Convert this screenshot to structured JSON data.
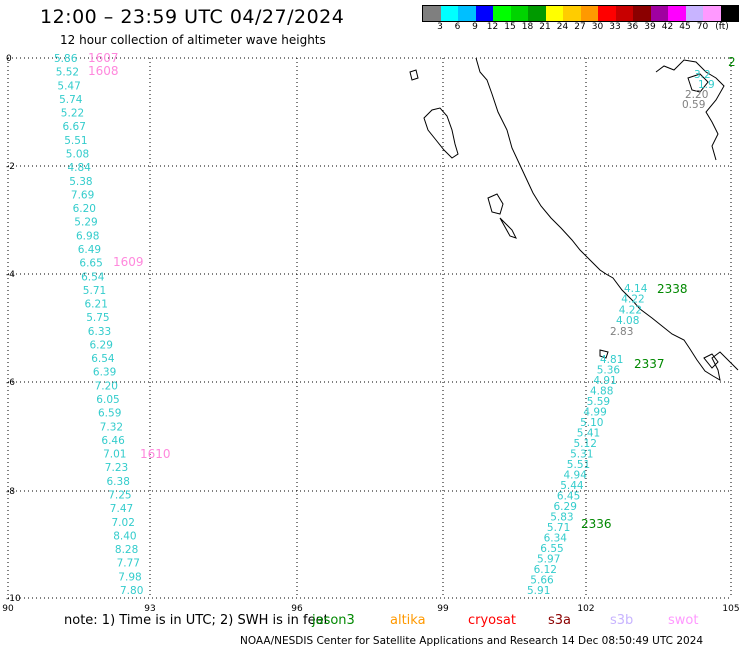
{
  "header": {
    "title": "12:00 – 23:59 UTC 04/27/2024",
    "subtitle": "12 hour collection of altimeter wave heights"
  },
  "scale": {
    "colors": [
      "#7f7f7f",
      "#00ffff",
      "#00bfff",
      "#0000ff",
      "#00ff00",
      "#00d400",
      "#009a00",
      "#ffff00",
      "#ffcc00",
      "#ff9900",
      "#ff0000",
      "#c80000",
      "#8b0000",
      "#a000a0",
      "#ff00ff",
      "#c8b4ff",
      "#ff99ff",
      "#000000"
    ],
    "ticks": [
      "3",
      "6",
      "9",
      "12",
      "15",
      "18",
      "21",
      "24",
      "27",
      "30",
      "33",
      "36",
      "39",
      "42",
      "45",
      "70"
    ],
    "unit": "(ft)"
  },
  "axes": {
    "lat_labels": [
      "0",
      "-2",
      "-4",
      "-6",
      "-8",
      "-10"
    ],
    "lon_labels": [
      "90",
      "93",
      "96",
      "99",
      "102",
      "105"
    ]
  },
  "tracks": [
    {
      "color": "#33cccc",
      "values": [
        "5.86",
        "5.52",
        "5.47",
        "5.74",
        "5.22",
        "6.67",
        "5.51",
        "5.08",
        "4.84",
        "5.38",
        "7.69",
        "6.20",
        "5.29",
        "6.98",
        "6.49",
        "6.65",
        "6.54",
        "5.71",
        "6.21",
        "5.75",
        "6.33",
        "6.29",
        "6.54",
        "6.39",
        "7.20",
        "6.05",
        "6.59",
        "7.32",
        "6.46",
        "7.01",
        "7.23",
        "6.38",
        "7.25",
        "7.47",
        "7.02",
        "8.40",
        "8.28",
        "7.77",
        "7.98",
        "7.80"
      ]
    },
    {
      "color": "#33cccc",
      "values": [
        "5.91",
        "5.66",
        "6.12",
        "5.97",
        "6.55",
        "6.34",
        "5.71",
        "5.83",
        "6.29",
        "6.45",
        "5.44",
        "4.94",
        "5.51",
        "5.31",
        "5.12",
        "5.41",
        "5.10",
        "4.99",
        "5.59",
        "4.88",
        "4.91",
        "5.36",
        "4.81"
      ]
    },
    {
      "color": "#33cccc",
      "values": [
        "4.14",
        "4.22",
        "4.22",
        "4.08"
      ]
    },
    {
      "color": "#808080",
      "values": [
        "2.83"
      ]
    },
    {
      "color": "#33cccc",
      "values": [
        "3.2",
        "1.9"
      ]
    },
    {
      "color": "#808080",
      "values": [
        "2.20",
        "0.59"
      ]
    }
  ],
  "pass_labels": [
    {
      "text": "1607",
      "color": "#ff88dd"
    },
    {
      "text": "1608",
      "color": "#ff88dd"
    },
    {
      "text": "1609",
      "color": "#ff88dd"
    },
    {
      "text": "1610",
      "color": "#ff88dd"
    },
    {
      "text": "2338",
      "color": "#008800"
    },
    {
      "text": "2337",
      "color": "#008800"
    },
    {
      "text": "2336",
      "color": "#008800"
    },
    {
      "text": "2",
      "color": "#008800"
    }
  ],
  "footer": {
    "note": "note:  1) Time is in UTC;  2) SWH is in feet",
    "satellites": [
      {
        "name": "jason3",
        "color": "#008800"
      },
      {
        "name": "altika",
        "color": "#ff9900"
      },
      {
        "name": "cryosat",
        "color": "#ff0000"
      },
      {
        "name": "s3a",
        "color": "#8b0000"
      },
      {
        "name": "s3b",
        "color": "#c8b4ff"
      },
      {
        "name": "swot",
        "color": "#ff99ff"
      }
    ],
    "credit": "NOAA/NESDIS Center for Satellite Applications and Research    14 Dec 08:50:49 UTC 2024"
  }
}
